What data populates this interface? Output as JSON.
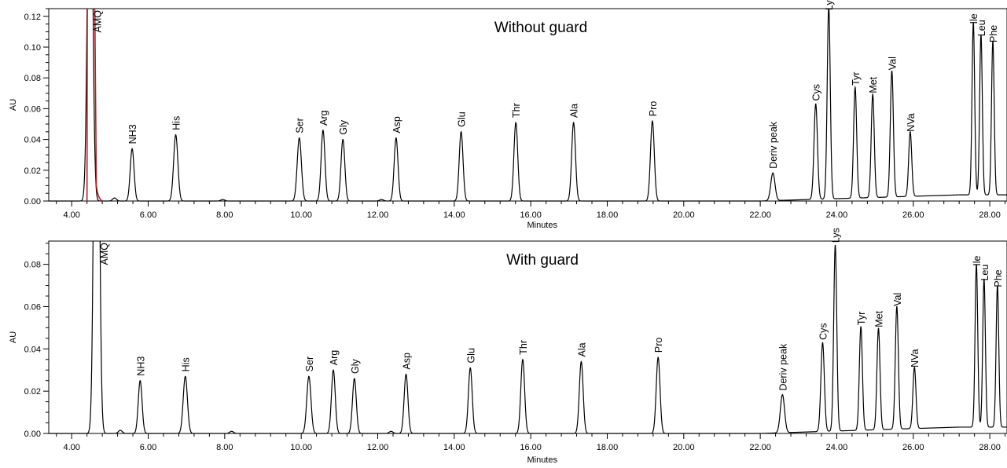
{
  "chart_data": [
    {
      "type": "line",
      "title": "Without guard",
      "xlabel": "Minutes",
      "ylabel": "AU",
      "xlim": [
        3.4,
        28.45
      ],
      "ylim": [
        0.0,
        0.125
      ],
      "x_ticks": [
        4,
        6,
        8,
        10,
        12,
        14,
        16,
        18,
        20,
        22,
        24,
        26,
        28
      ],
      "x_tick_labels": [
        "4.00",
        "6.00",
        "8.00",
        "10.00",
        "12.00",
        "14.00",
        "16.00",
        "18.00",
        "20.00",
        "22.00",
        "24.00",
        "26.00",
        "28.00"
      ],
      "y_ticks": [
        0,
        0.02,
        0.04,
        0.06,
        0.08,
        0.1,
        0.12
      ],
      "y_tick_labels": [
        "0.00",
        "0.02",
        "0.04",
        "0.06",
        "0.08",
        "0.10",
        "0.12"
      ],
      "peak_color": "#000000",
      "solvent_color": "#b22222",
      "solvent_front_time": 4.4,
      "baseline": [
        [
          3.4,
          0.0
        ],
        [
          22.0,
          0.0
        ],
        [
          27.2,
          0.004
        ],
        [
          28.45,
          0.004
        ]
      ],
      "peaks": [
        {
          "label": "AMQ",
          "time": 4.48,
          "height": 0.3,
          "width": 0.06
        },
        {
          "label": "",
          "time": 5.12,
          "height": 0.002,
          "width": 0.05
        },
        {
          "label": "NH3",
          "time": 5.58,
          "height": 0.034,
          "width": 0.05
        },
        {
          "label": "His",
          "time": 6.72,
          "height": 0.043,
          "width": 0.055
        },
        {
          "label": "",
          "time": 7.95,
          "height": 0.001,
          "width": 0.05
        },
        {
          "label": "Ser",
          "time": 9.95,
          "height": 0.041,
          "width": 0.055
        },
        {
          "label": "Arg",
          "time": 10.57,
          "height": 0.046,
          "width": 0.05
        },
        {
          "label": "Gly",
          "time": 11.09,
          "height": 0.04,
          "width": 0.05
        },
        {
          "label": "",
          "time": 12.1,
          "height": 0.001,
          "width": 0.05
        },
        {
          "label": "Asp",
          "time": 12.48,
          "height": 0.041,
          "width": 0.05
        },
        {
          "label": "Glu",
          "time": 14.18,
          "height": 0.045,
          "width": 0.05
        },
        {
          "label": "Thr",
          "time": 15.61,
          "height": 0.051,
          "width": 0.05
        },
        {
          "label": "Ala",
          "time": 17.12,
          "height": 0.051,
          "width": 0.05
        },
        {
          "label": "Pro",
          "time": 19.18,
          "height": 0.052,
          "width": 0.05
        },
        {
          "label": "Deriv peak",
          "time": 22.33,
          "height": 0.018,
          "width": 0.055
        },
        {
          "label": "Cys",
          "time": 23.45,
          "height": 0.062,
          "width": 0.045
        },
        {
          "label": "Lys",
          "time": 23.79,
          "height": 0.125,
          "width": 0.04
        },
        {
          "label": "Tyr",
          "time": 24.48,
          "height": 0.072,
          "width": 0.04
        },
        {
          "label": "Met",
          "time": 24.94,
          "height": 0.067,
          "width": 0.04
        },
        {
          "label": "Val",
          "time": 25.44,
          "height": 0.082,
          "width": 0.04
        },
        {
          "label": "NVa",
          "time": 25.92,
          "height": 0.042,
          "width": 0.04
        },
        {
          "label": "Ile",
          "time": 27.57,
          "height": 0.112,
          "width": 0.035
        },
        {
          "label": "Leu",
          "time": 27.77,
          "height": 0.104,
          "width": 0.035
        },
        {
          "label": "Phe",
          "time": 28.08,
          "height": 0.1,
          "width": 0.035
        }
      ]
    },
    {
      "type": "line",
      "title": "With guard",
      "xlabel": "Minutes",
      "ylabel": "AU",
      "xlim": [
        3.4,
        28.45
      ],
      "ylim": [
        0.0,
        0.091
      ],
      "x_ticks": [
        4,
        6,
        8,
        10,
        12,
        14,
        16,
        18,
        20,
        22,
        24,
        26,
        28
      ],
      "x_tick_labels": [
        "4.00",
        "6.00",
        "8.00",
        "10.00",
        "12.00",
        "14.00",
        "16.00",
        "18.00",
        "20.00",
        "22.00",
        "24.00",
        "26.00",
        "28.00"
      ],
      "y_ticks": [
        0,
        0.02,
        0.04,
        0.06,
        0.08
      ],
      "y_tick_labels": [
        "0.00",
        "0.02",
        "0.04",
        "0.06",
        "0.08"
      ],
      "peak_color": "#000000",
      "baseline": [
        [
          3.4,
          0.0
        ],
        [
          22.0,
          0.0
        ],
        [
          27.2,
          0.003
        ],
        [
          28.45,
          0.003
        ]
      ],
      "peaks": [
        {
          "label": "AMQ",
          "time": 4.65,
          "height": 0.3,
          "width": 0.06
        },
        {
          "label": "",
          "time": 5.27,
          "height": 0.0015,
          "width": 0.05
        },
        {
          "label": "NH3",
          "time": 5.79,
          "height": 0.025,
          "width": 0.05
        },
        {
          "label": "His",
          "time": 6.97,
          "height": 0.027,
          "width": 0.055
        },
        {
          "label": "",
          "time": 8.18,
          "height": 0.001,
          "width": 0.05
        },
        {
          "label": "Ser",
          "time": 10.2,
          "height": 0.027,
          "width": 0.055
        },
        {
          "label": "Arg",
          "time": 10.84,
          "height": 0.03,
          "width": 0.05
        },
        {
          "label": "Gly",
          "time": 11.39,
          "height": 0.026,
          "width": 0.05
        },
        {
          "label": "",
          "time": 12.35,
          "height": 0.001,
          "width": 0.05
        },
        {
          "label": "Asp",
          "time": 12.74,
          "height": 0.028,
          "width": 0.05
        },
        {
          "label": "Glu",
          "time": 14.42,
          "height": 0.031,
          "width": 0.05
        },
        {
          "label": "Thr",
          "time": 15.79,
          "height": 0.035,
          "width": 0.05
        },
        {
          "label": "Ala",
          "time": 17.32,
          "height": 0.034,
          "width": 0.05
        },
        {
          "label": "Pro",
          "time": 19.33,
          "height": 0.036,
          "width": 0.05
        },
        {
          "label": "Deriv peak",
          "time": 22.58,
          "height": 0.018,
          "width": 0.055
        },
        {
          "label": "Cys",
          "time": 23.63,
          "height": 0.042,
          "width": 0.045
        },
        {
          "label": "Lys",
          "time": 23.96,
          "height": 0.088,
          "width": 0.04
        },
        {
          "label": "Tyr",
          "time": 24.63,
          "height": 0.049,
          "width": 0.04
        },
        {
          "label": "Met",
          "time": 25.09,
          "height": 0.048,
          "width": 0.04
        },
        {
          "label": "Val",
          "time": 25.57,
          "height": 0.058,
          "width": 0.04
        },
        {
          "label": "NVa",
          "time": 26.03,
          "height": 0.029,
          "width": 0.04
        },
        {
          "label": "Ile",
          "time": 27.65,
          "height": 0.077,
          "width": 0.035
        },
        {
          "label": "Leu",
          "time": 27.85,
          "height": 0.07,
          "width": 0.035
        },
        {
          "label": "Phe",
          "time": 28.2,
          "height": 0.067,
          "width": 0.035
        }
      ]
    }
  ]
}
